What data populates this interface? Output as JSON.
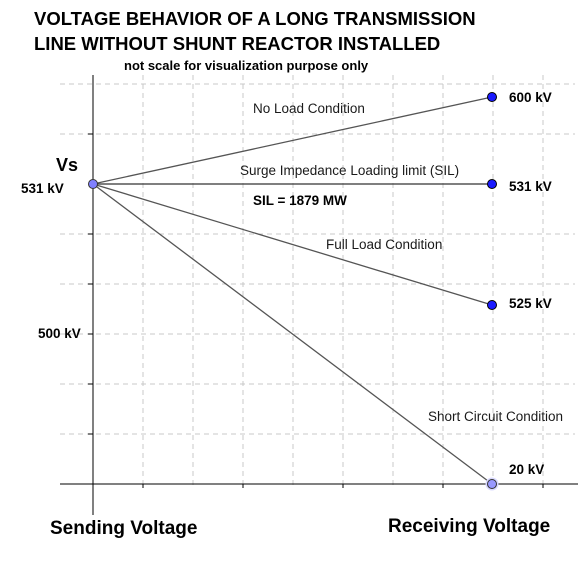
{
  "title_line1": "VOLTAGE BEHAVIOR OF A LONG TRANSMISSION",
  "title_line2": "LINE WITHOUT SHUNT REACTOR INSTALLED",
  "subtitle": "not scale for visualization purpose only",
  "sending": {
    "symbol": "Vs",
    "value_label": "531 kV",
    "kv": 531
  },
  "reference_label": "500 kV",
  "conditions": [
    {
      "name": "No Load Condition",
      "receiving_label": "600 kV",
      "receiving_kv": 600
    },
    {
      "name": "Surge Impedance Loading limit (SIL)",
      "receiving_label": "531 kV",
      "receiving_kv": 531
    },
    {
      "name": "Full Load Condition",
      "receiving_label": "525 kV",
      "receiving_kv": 525
    },
    {
      "name": "Short Circuit Condition",
      "receiving_label": "20 kV",
      "receiving_kv": 20
    }
  ],
  "sil_note": "SIL = 1879 MW",
  "x_labels": {
    "sending": "Sending Voltage",
    "receiving": "Receiving Voltage"
  },
  "colors": {
    "line": "#555555",
    "point": "#1a1aff",
    "point_start": "#8080ff",
    "point_short": "#9999ff",
    "grid": "#c8c8c8"
  }
}
